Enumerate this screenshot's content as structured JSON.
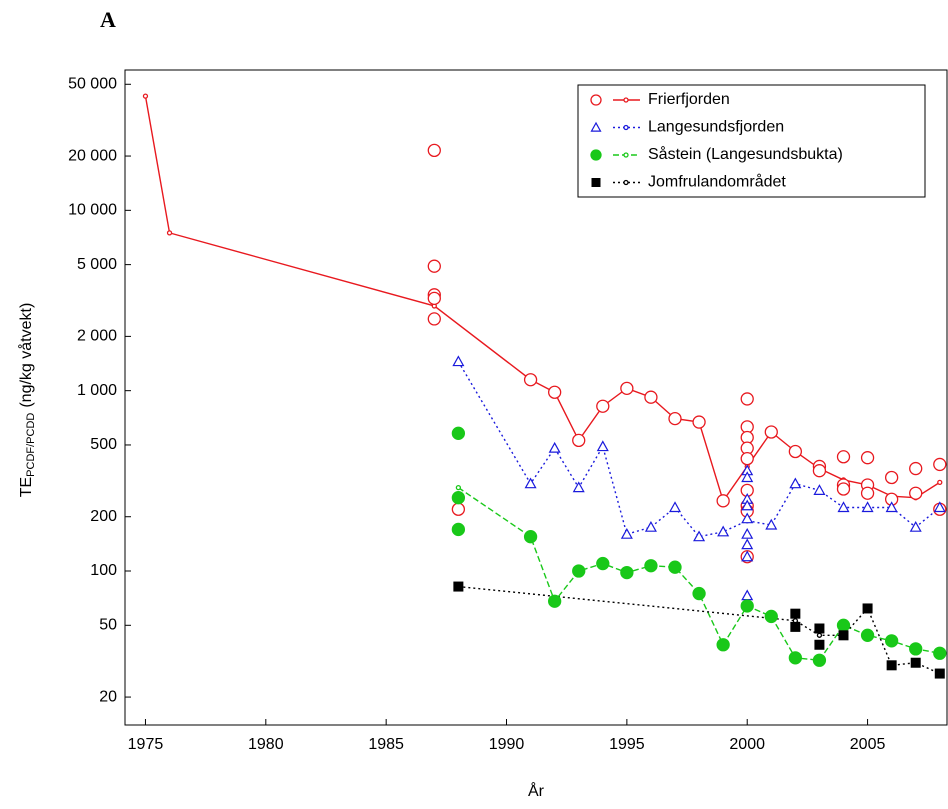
{
  "chart_data": {
    "type": "scatter-line",
    "panel_label": "A",
    "x_label": "År",
    "y_label_main": "TE",
    "y_label_sub": "PCDF/PCDD",
    "y_label_unit": "(ng/kg våtvekt)",
    "y_log": true,
    "grid": false,
    "legend": "upper right",
    "xlim": [
      1974.15,
      2008.3
    ],
    "xticks": [
      1975,
      1980,
      1985,
      1990,
      1995,
      2000,
      2005
    ],
    "ylim": [
      14,
      60000
    ],
    "yticks": [
      20,
      50,
      100,
      200,
      500,
      {
        "value": 1000,
        "label": "1 000"
      },
      {
        "value": 2000,
        "label": "2 000"
      },
      {
        "value": 5000,
        "label": "5 000"
      },
      {
        "value": 10000,
        "label": "10 000"
      },
      {
        "value": 20000,
        "label": "20 000"
      },
      {
        "value": 50000,
        "label": "50 000"
      }
    ],
    "series": [
      {
        "name": "Frierfjorden",
        "color": "#e8191f",
        "marker": "circle-open",
        "line_style": "solid",
        "points_x": [
          1987,
          1987,
          1987,
          1987,
          1987,
          1988,
          1991,
          1992,
          1993,
          1994,
          1995,
          1996,
          1997,
          1998,
          1999,
          2000,
          2000,
          2000,
          2000,
          2000,
          2000,
          2000,
          2000,
          2000,
          2001,
          2002,
          2003,
          2003,
          2004,
          2004,
          2004,
          2005,
          2005,
          2005,
          2006,
          2006,
          2007,
          2007,
          2008,
          2008
        ],
        "points_y": [
          21500,
          4900,
          3400,
          3250,
          2500,
          220,
          1150,
          980,
          530,
          820,
          1030,
          920,
          700,
          670,
          245,
          900,
          630,
          550,
          480,
          420,
          280,
          230,
          215,
          120,
          590,
          460,
          380,
          360,
          430,
          300,
          285,
          425,
          300,
          270,
          330,
          250,
          370,
          270,
          220,
          390
        ],
        "line_x": [
          1975,
          1976,
          1987,
          1991,
          1992,
          1993,
          1994,
          1995,
          1996,
          1997,
          1998,
          1999,
          2000,
          2001,
          2002,
          2003,
          2004,
          2005,
          2006,
          2007,
          2008
        ],
        "line_y": [
          43000,
          7500,
          2950,
          1150,
          980,
          530,
          820,
          1030,
          920,
          700,
          670,
          245,
          380,
          590,
          460,
          370,
          320,
          300,
          260,
          255,
          310
        ]
      },
      {
        "name": "Langesundsfjorden",
        "color": "#1a1adc",
        "marker": "triangle-open",
        "line_style": "dotted",
        "points_x": [
          1988,
          1991,
          1992,
          1993,
          1994,
          1995,
          1996,
          1997,
          1998,
          1999,
          2000,
          2000,
          2000,
          2000,
          2000,
          2000,
          2000,
          2000,
          2000,
          2001,
          2002,
          2003,
          2004,
          2005,
          2006,
          2007,
          2008
        ],
        "points_y": [
          1450,
          305,
          480,
          290,
          490,
          160,
          175,
          225,
          155,
          165,
          360,
          330,
          250,
          230,
          195,
          160,
          140,
          120,
          73,
          180,
          305,
          280,
          225,
          225,
          225,
          175,
          225
        ],
        "line_x": [
          1988,
          1991,
          1992,
          1993,
          1994,
          1995,
          1996,
          1997,
          1998,
          1999,
          2000,
          2001,
          2002,
          2003,
          2004,
          2005,
          2006,
          2007,
          2008
        ],
        "line_y": [
          1450,
          305,
          480,
          290,
          490,
          160,
          175,
          225,
          155,
          165,
          190,
          180,
          305,
          280,
          225,
          225,
          225,
          175,
          225
        ]
      },
      {
        "name": "Såstein (Langesundsbukta)",
        "color": "#19c819",
        "marker": "circle-filled",
        "line_style": "dashed",
        "points_x": [
          1988,
          1988,
          1988,
          1991,
          1992,
          1993,
          1994,
          1995,
          1996,
          1997,
          1998,
          1999,
          2000,
          2001,
          2002,
          2003,
          2004,
          2005,
          2006,
          2007,
          2008
        ],
        "points_y": [
          580,
          255,
          170,
          155,
          68,
          100,
          110,
          98,
          107,
          105,
          75,
          39,
          64,
          56,
          33,
          32,
          50,
          44,
          41,
          37,
          35
        ],
        "line_x": [
          1988,
          1991,
          1992,
          1993,
          1994,
          1995,
          1996,
          1997,
          1998,
          1999,
          2000,
          2001,
          2002,
          2003,
          2004,
          2005,
          2006,
          2007,
          2008
        ],
        "line_y": [
          290,
          155,
          68,
          100,
          110,
          98,
          107,
          105,
          75,
          39,
          64,
          56,
          33,
          32,
          50,
          44,
          41,
          37,
          35
        ]
      },
      {
        "name": "Jomfrulandområdet",
        "color": "#000000",
        "marker": "square-filled",
        "line_style": "dotted",
        "points_x": [
          1988,
          2002,
          2002,
          2003,
          2003,
          2004,
          2005,
          2006,
          2007,
          2008
        ],
        "points_y": [
          82,
          58,
          49,
          48,
          39,
          44,
          62,
          30,
          31,
          27
        ],
        "line_x": [
          1988,
          2002,
          2003,
          2004,
          2005,
          2006,
          2007,
          2008
        ],
        "line_y": [
          82,
          53,
          44,
          44,
          62,
          30,
          31,
          27
        ]
      }
    ]
  }
}
